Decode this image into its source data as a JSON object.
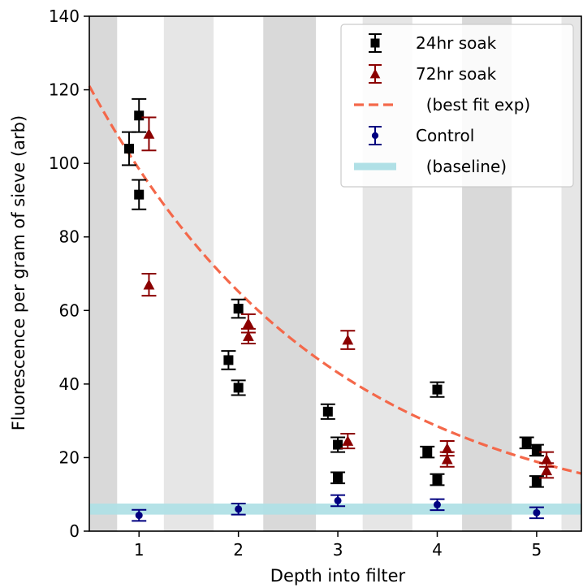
{
  "chart_data": {
    "type": "scatter",
    "xlabel": "Depth into filter",
    "ylabel": "Fluorescence per gram of sieve (arb)",
    "xlim": [
      0.5,
      5.45
    ],
    "ylim": [
      0,
      140
    ],
    "xticks": [
      1,
      2,
      3,
      4,
      5
    ],
    "yticks": [
      0,
      20,
      40,
      60,
      80,
      100,
      120,
      140
    ],
    "background_bands": {
      "colors": [
        "#d9d9d9",
        "#e6e6e6"
      ],
      "x_ranges": [
        [
          0.5,
          0.78
        ],
        [
          1.25,
          1.75
        ],
        [
          2.25,
          2.78
        ],
        [
          3.25,
          3.75
        ],
        [
          4.25,
          4.75
        ],
        [
          5.25,
          5.45
        ]
      ]
    },
    "legend": {
      "placement": "top-right"
    },
    "series": [
      {
        "name": "24hr soak",
        "color": "#000000",
        "marker": "square",
        "points": [
          {
            "x": 0.9,
            "y": 104,
            "err": 4.5
          },
          {
            "x": 1.0,
            "y": 113,
            "err": 4.5
          },
          {
            "x": 1.0,
            "y": 91.5,
            "err": 4
          },
          {
            "x": 1.9,
            "y": 46.5,
            "err": 2.5
          },
          {
            "x": 2.0,
            "y": 60.5,
            "err": 2.5
          },
          {
            "x": 2.0,
            "y": 39,
            "err": 2
          },
          {
            "x": 2.9,
            "y": 32.5,
            "err": 2
          },
          {
            "x": 3.0,
            "y": 23.5,
            "err": 2
          },
          {
            "x": 3.0,
            "y": 14.5,
            "err": 1.5
          },
          {
            "x": 3.9,
            "y": 21.5,
            "err": 1.5
          },
          {
            "x": 4.0,
            "y": 38.5,
            "err": 2
          },
          {
            "x": 4.0,
            "y": 14,
            "err": 1.5
          },
          {
            "x": 4.9,
            "y": 24,
            "err": 1.5
          },
          {
            "x": 5.0,
            "y": 22,
            "err": 1.5
          },
          {
            "x": 5.0,
            "y": 13.5,
            "err": 1.5
          }
        ]
      },
      {
        "name": "72hr soak",
        "color": "#8b0000",
        "marker": "triangle",
        "points": [
          {
            "x": 1.1,
            "y": 108,
            "err": 4.5
          },
          {
            "x": 1.1,
            "y": 67,
            "err": 3
          },
          {
            "x": 2.1,
            "y": 56.5,
            "err": 2.5
          },
          {
            "x": 2.1,
            "y": 53,
            "err": 2
          },
          {
            "x": 3.1,
            "y": 52,
            "err": 2.5
          },
          {
            "x": 3.1,
            "y": 24.5,
            "err": 2
          },
          {
            "x": 4.1,
            "y": 22.5,
            "err": 2
          },
          {
            "x": 4.1,
            "y": 19.5,
            "err": 2
          },
          {
            "x": 5.1,
            "y": 19.5,
            "err": 2
          },
          {
            "x": 5.1,
            "y": 16.5,
            "err": 2
          }
        ]
      },
      {
        "name": "Control",
        "color": "#000080",
        "marker": "circle",
        "points": [
          {
            "x": 1.0,
            "y": 4.3,
            "err": 1.5
          },
          {
            "x": 2.0,
            "y": 6,
            "err": 1.5
          },
          {
            "x": 3.0,
            "y": 8.3,
            "err": 1.5
          },
          {
            "x": 4.0,
            "y": 7.2,
            "err": 1.5
          },
          {
            "x": 5.0,
            "y": 5,
            "err": 1.5
          }
        ]
      }
    ],
    "fit": {
      "name": "  (best fit exp)",
      "color": "#f4684a",
      "style": "dashed",
      "model": "y = a * exp(-b * x)",
      "a": 148.8,
      "b": 0.413
    },
    "baseline": {
      "name": "  (baseline)",
      "color": "#b0e0e6",
      "y_low": 4.5,
      "y_high": 7.5
    }
  }
}
